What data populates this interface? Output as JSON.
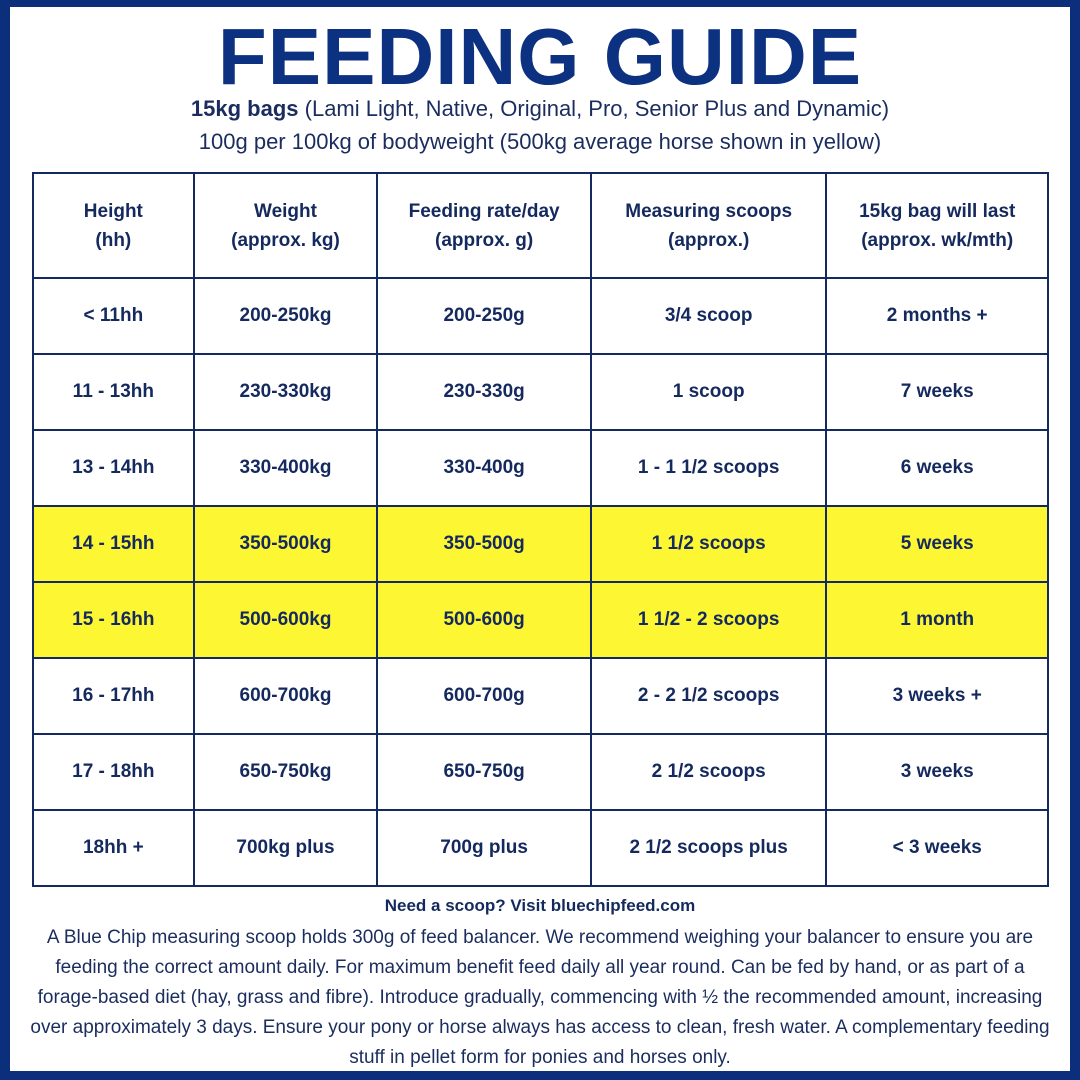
{
  "title": "FEEDING GUIDE",
  "subtitle_bold": "15kg bags",
  "subtitle_rest": " (Lami Light, Native, Original, Pro, Senior Plus and Dynamic)",
  "subtitle2": "100g per 100kg of bodyweight (500kg average horse shown in yellow)",
  "headers": [
    [
      "Height",
      "(hh)"
    ],
    [
      "Weight",
      "(approx. kg)"
    ],
    [
      "Feeding rate/day",
      "(approx. g)"
    ],
    [
      "Measuring scoops",
      "(approx.)"
    ],
    [
      "15kg bag will last",
      "(approx. wk/mth)"
    ]
  ],
  "rows": [
    {
      "highlight": false,
      "cells": [
        "< 11hh",
        "200-250kg",
        "200-250g",
        "3/4 scoop",
        "2 months +"
      ]
    },
    {
      "highlight": false,
      "cells": [
        "11 - 13hh",
        "230-330kg",
        "230-330g",
        "1 scoop",
        "7 weeks"
      ]
    },
    {
      "highlight": false,
      "cells": [
        "13 - 14hh",
        "330-400kg",
        "330-400g",
        "1 - 1 1/2 scoops",
        "6 weeks"
      ]
    },
    {
      "highlight": true,
      "cells": [
        "14 - 15hh",
        "350-500kg",
        "350-500g",
        "1 1/2 scoops",
        "5 weeks"
      ]
    },
    {
      "highlight": true,
      "cells": [
        "15 - 16hh",
        "500-600kg",
        "500-600g",
        "1 1/2 - 2 scoops",
        "1 month"
      ]
    },
    {
      "highlight": false,
      "cells": [
        "16 - 17hh",
        "600-700kg",
        "600-700g",
        "2 - 2 1/2 scoops",
        "3 weeks +"
      ]
    },
    {
      "highlight": false,
      "cells": [
        "17 - 18hh",
        "650-750kg",
        "650-750g",
        "2 1/2 scoops",
        "3 weeks"
      ]
    },
    {
      "highlight": false,
      "cells": [
        "18hh +",
        "700kg plus",
        "700g plus",
        "2 1/2 scoops plus",
        "< 3 weeks"
      ]
    }
  ],
  "note": "Need a scoop? Visit bluechipfeed.com",
  "body": "A Blue Chip measuring scoop holds 300g of feed balancer. We recommend weighing your balancer to ensure you are feeding the correct amount daily. For maximum benefit feed daily all year round. Can be fed by hand, or as part of a forage-based diet (hay, grass and fibre). Introduce gradually, commencing with ½ the recommended amount, increasing over approximately 3 days. Ensure your pony or horse always has access to clean, fresh water. A complementary feeding stuff in pellet form for ponies and horses only.",
  "colors": {
    "navy": "#0c2f7c",
    "highlight": "#fdf633"
  }
}
